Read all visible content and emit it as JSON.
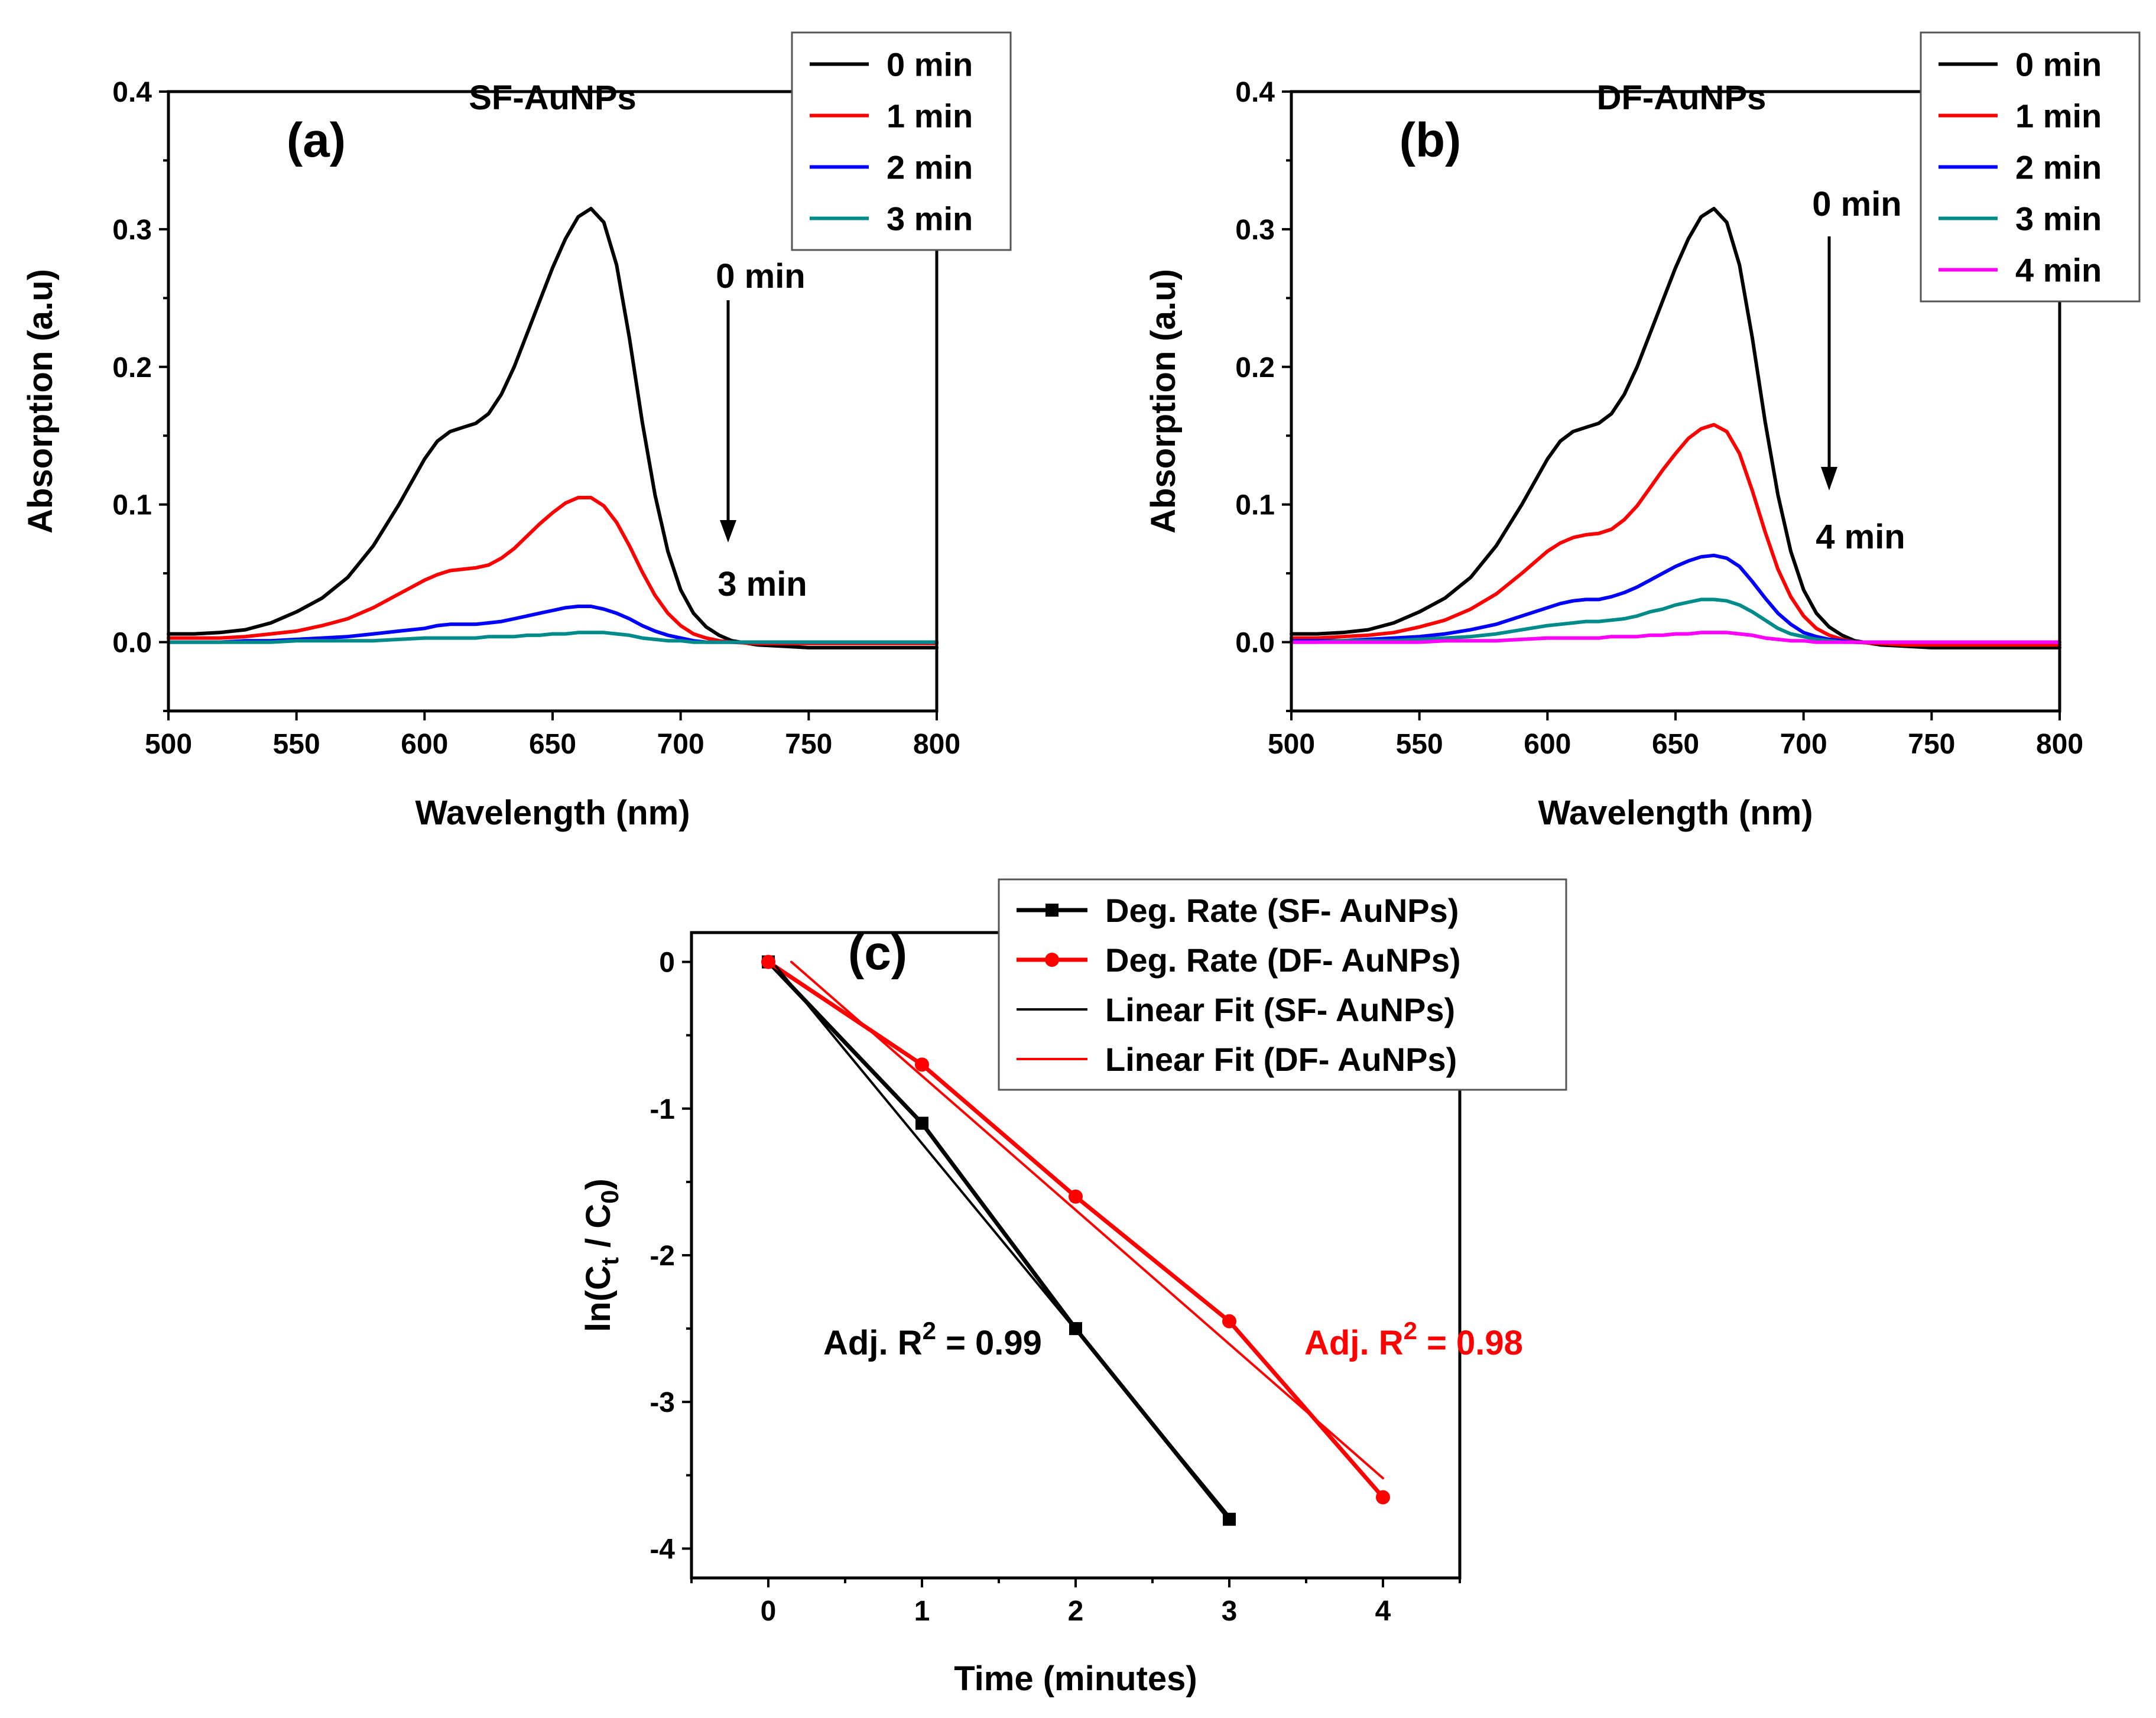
{
  "chart_data": [
    {
      "type": "line",
      "panel": "(a)",
      "title": "SF-AuNPs",
      "xlabel": "Wavelength (nm)",
      "ylabel": "Absorption (a.u)",
      "xlim": [
        500,
        800
      ],
      "ylim": [
        -0.05,
        0.4
      ],
      "xticks": [
        "500",
        "550",
        "600",
        "650",
        "700",
        "750",
        "800"
      ],
      "yticks": [
        "0.0",
        "0.1",
        "0.2",
        "0.3",
        "0.4"
      ],
      "x": [
        500,
        510,
        520,
        530,
        540,
        550,
        560,
        570,
        580,
        590,
        600,
        605,
        610,
        615,
        620,
        625,
        630,
        635,
        640,
        645,
        650,
        655,
        660,
        665,
        670,
        675,
        680,
        685,
        690,
        695,
        700,
        705,
        710,
        715,
        720,
        730,
        740,
        750,
        760,
        770,
        780,
        790,
        800
      ],
      "series": [
        {
          "name": "0 min",
          "color": "#000000",
          "values": [
            0.006,
            0.006,
            0.007,
            0.009,
            0.014,
            0.022,
            0.032,
            0.047,
            0.07,
            0.1,
            0.133,
            0.146,
            0.153,
            0.156,
            0.159,
            0.166,
            0.18,
            0.2,
            0.224,
            0.248,
            0.272,
            0.293,
            0.309,
            0.315,
            0.305,
            0.274,
            0.221,
            0.16,
            0.107,
            0.066,
            0.038,
            0.021,
            0.011,
            0.005,
            0.001,
            -0.002,
            -0.003,
            -0.004,
            -0.004,
            -0.004,
            -0.004,
            -0.004,
            -0.004
          ]
        },
        {
          "name": "1 min",
          "color": "#ff0000",
          "values": [
            0.003,
            0.003,
            0.003,
            0.004,
            0.006,
            0.008,
            0.012,
            0.017,
            0.025,
            0.035,
            0.045,
            0.049,
            0.052,
            0.053,
            0.054,
            0.056,
            0.061,
            0.068,
            0.077,
            0.086,
            0.094,
            0.101,
            0.105,
            0.105,
            0.099,
            0.087,
            0.07,
            0.051,
            0.034,
            0.021,
            0.012,
            0.006,
            0.003,
            0.001,
            0.0,
            -0.001,
            -0.001,
            -0.001,
            -0.001,
            -0.001,
            -0.001,
            -0.001,
            -0.001
          ]
        },
        {
          "name": "2 min",
          "color": "#0000ff",
          "values": [
            0.0,
            0.0,
            0.0,
            0.001,
            0.001,
            0.002,
            0.003,
            0.004,
            0.006,
            0.008,
            0.01,
            0.012,
            0.013,
            0.013,
            0.013,
            0.014,
            0.015,
            0.017,
            0.019,
            0.021,
            0.023,
            0.025,
            0.026,
            0.026,
            0.024,
            0.021,
            0.017,
            0.012,
            0.008,
            0.005,
            0.003,
            0.001,
            0.0,
            0.0,
            0.0,
            0.0,
            0.0,
            0.0,
            0.0,
            0.0,
            0.0,
            0.0,
            0.0
          ]
        },
        {
          "name": "3 min",
          "color": "#008b8b",
          "values": [
            0.0,
            0.0,
            0.0,
            0.0,
            0.0,
            0.001,
            0.001,
            0.001,
            0.001,
            0.002,
            0.003,
            0.003,
            0.003,
            0.003,
            0.003,
            0.004,
            0.004,
            0.004,
            0.005,
            0.005,
            0.006,
            0.006,
            0.007,
            0.007,
            0.007,
            0.006,
            0.005,
            0.003,
            0.002,
            0.001,
            0.001,
            0.0,
            0.0,
            0.0,
            0.0,
            0.0,
            0.0,
            0.0,
            0.0,
            0.0,
            0.0,
            0.0,
            0.0
          ]
        }
      ],
      "annotations": {
        "start": "0 min",
        "end": "3 min"
      },
      "legend": "top-right"
    },
    {
      "type": "line",
      "panel": "(b)",
      "title": "DF-AuNPs",
      "xlabel": "Wavelength (nm)",
      "ylabel": "Absorption (a.u)",
      "xlim": [
        500,
        800
      ],
      "ylim": [
        -0.05,
        0.4
      ],
      "xticks": [
        "500",
        "550",
        "600",
        "650",
        "700",
        "750",
        "800"
      ],
      "yticks": [
        "0.0",
        "0.1",
        "0.2",
        "0.3",
        "0.4"
      ],
      "x": [
        500,
        510,
        520,
        530,
        540,
        550,
        560,
        570,
        580,
        590,
        600,
        605,
        610,
        615,
        620,
        625,
        630,
        635,
        640,
        645,
        650,
        655,
        660,
        665,
        670,
        675,
        680,
        685,
        690,
        695,
        700,
        705,
        710,
        715,
        720,
        730,
        740,
        750,
        760,
        770,
        780,
        790,
        800
      ],
      "series": [
        {
          "name": "0 min",
          "color": "#000000",
          "values": [
            0.006,
            0.006,
            0.007,
            0.009,
            0.014,
            0.022,
            0.032,
            0.047,
            0.07,
            0.1,
            0.133,
            0.146,
            0.153,
            0.156,
            0.159,
            0.166,
            0.18,
            0.2,
            0.224,
            0.248,
            0.272,
            0.293,
            0.309,
            0.315,
            0.305,
            0.274,
            0.221,
            0.16,
            0.107,
            0.066,
            0.038,
            0.021,
            0.011,
            0.005,
            0.001,
            -0.002,
            -0.003,
            -0.004,
            -0.004,
            -0.004,
            -0.004,
            -0.004,
            -0.004
          ]
        },
        {
          "name": "1 min",
          "color": "#ff0000",
          "values": [
            0.003,
            0.003,
            0.004,
            0.005,
            0.007,
            0.011,
            0.016,
            0.024,
            0.035,
            0.05,
            0.066,
            0.072,
            0.076,
            0.078,
            0.079,
            0.082,
            0.089,
            0.099,
            0.112,
            0.125,
            0.137,
            0.148,
            0.155,
            0.158,
            0.153,
            0.137,
            0.11,
            0.08,
            0.053,
            0.033,
            0.019,
            0.01,
            0.005,
            0.002,
            0.0,
            -0.001,
            -0.002,
            -0.002,
            -0.002,
            -0.002,
            -0.002,
            -0.002,
            -0.002
          ]
        },
        {
          "name": "2 min",
          "color": "#0000ff",
          "values": [
            0.001,
            0.001,
            0.001,
            0.002,
            0.003,
            0.004,
            0.006,
            0.009,
            0.013,
            0.019,
            0.025,
            0.028,
            0.03,
            0.031,
            0.031,
            0.033,
            0.036,
            0.04,
            0.045,
            0.05,
            0.055,
            0.059,
            0.062,
            0.063,
            0.061,
            0.055,
            0.044,
            0.032,
            0.021,
            0.013,
            0.007,
            0.004,
            0.002,
            0.001,
            0.0,
            0.0,
            0.0,
            0.0,
            0.0,
            0.0,
            0.0,
            0.0,
            0.0
          ]
        },
        {
          "name": "3 min",
          "color": "#008b8b",
          "values": [
            0.0,
            0.0,
            0.001,
            0.001,
            0.001,
            0.002,
            0.003,
            0.004,
            0.006,
            0.009,
            0.012,
            0.013,
            0.014,
            0.015,
            0.015,
            0.016,
            0.017,
            0.019,
            0.022,
            0.024,
            0.027,
            0.029,
            0.031,
            0.031,
            0.03,
            0.027,
            0.022,
            0.016,
            0.01,
            0.006,
            0.004,
            0.002,
            0.001,
            0.0,
            0.0,
            0.0,
            0.0,
            0.0,
            0.0,
            0.0,
            0.0,
            0.0,
            0.0
          ]
        },
        {
          "name": "4 min",
          "color": "#ff00ff",
          "values": [
            0.0,
            0.0,
            0.0,
            0.0,
            0.0,
            0.0,
            0.001,
            0.001,
            0.001,
            0.002,
            0.003,
            0.003,
            0.003,
            0.003,
            0.003,
            0.004,
            0.004,
            0.004,
            0.005,
            0.005,
            0.006,
            0.006,
            0.007,
            0.007,
            0.007,
            0.006,
            0.005,
            0.003,
            0.002,
            0.001,
            0.001,
            0.0,
            0.0,
            0.0,
            0.0,
            0.0,
            0.0,
            0.0,
            0.0,
            0.0,
            0.0,
            0.0,
            0.0
          ]
        }
      ],
      "annotations": {
        "start": "0 min",
        "end": "4 min"
      },
      "legend": "top-right"
    },
    {
      "type": "line",
      "panel": "(c)",
      "xlabel": "Time (minutes)",
      "ylabel_parts": [
        "ln(C",
        "t",
        " / C",
        "0",
        ")"
      ],
      "xlim": [
        -0.5,
        4.5
      ],
      "ylim": [
        -4.2,
        0.2
      ],
      "xticks": [
        "0",
        "1",
        "2",
        "3",
        "4"
      ],
      "yticks": [
        "0",
        "-1",
        "-2",
        "-3",
        "-4"
      ],
      "series": [
        {
          "name": "Deg. Rate (SF- AuNPs)",
          "color": "#000000",
          "marker": "square",
          "x": [
            0,
            1,
            2,
            3
          ],
          "y": [
            0,
            -1.1,
            -2.5,
            -3.8
          ]
        },
        {
          "name": "Deg. Rate (DF- AuNPs)",
          "color": "#ff0000",
          "marker": "circle",
          "x": [
            0,
            1,
            2,
            3,
            4
          ],
          "y": [
            0,
            -0.7,
            -1.6,
            -2.45,
            -3.65
          ]
        },
        {
          "name": "Linear Fit  (SF- AuNPs)",
          "color": "#000000",
          "marker": "none",
          "x": [
            0.05,
            3.0
          ],
          "y": [
            -0.03,
            -3.78
          ]
        },
        {
          "name": "Linear Fit  (DF- AuNPs)",
          "color": "#ff0000",
          "marker": "none",
          "x": [
            0.15,
            4.0
          ],
          "y": [
            0.0,
            -3.52
          ]
        }
      ],
      "annotations": [
        {
          "prefix": "Adj. R",
          "sup": "2",
          "suffix": " = 0.99",
          "color": "#000000"
        },
        {
          "prefix": "Adj. R",
          "sup": "2",
          "suffix": " = 0.98",
          "color": "#ff0000"
        }
      ],
      "legend": "top-right"
    }
  ]
}
